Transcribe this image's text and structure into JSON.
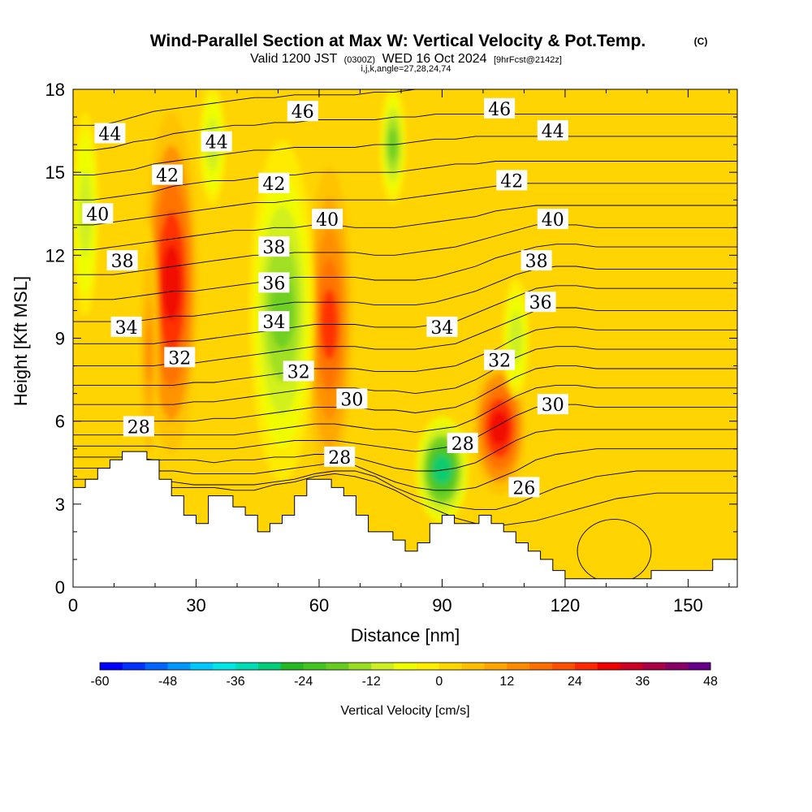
{
  "title": "Wind-Parallel Section at Max W: Vertical Velocity & Pot.Temp.",
  "copyright": "(C)",
  "subtitle": {
    "valid": "Valid 1200 JST",
    "utc": "(0300Z)",
    "date": "WED 16 Oct 2024",
    "forecast": "[9hrFcst@2142z]"
  },
  "indices": "i,j,k,angle=27,28,24,74",
  "chart_data": {
    "type": "heatmap",
    "xlabel": "Distance [nm]",
    "ylabel": "Height [Kft MSL]",
    "xlim": [
      0,
      162
    ],
    "ylim": [
      0,
      18
    ],
    "xticks": [
      0,
      30,
      60,
      90,
      120,
      150
    ],
    "yticks": [
      0,
      3,
      6,
      9,
      12,
      15,
      18
    ],
    "colorbar": {
      "label": "Vertical Velocity [cm/s]",
      "ticks": [
        -60,
        -48,
        -36,
        -24,
        -12,
        0,
        12,
        24,
        36,
        48
      ],
      "range": [
        -60,
        48
      ],
      "colors": [
        "#0000ff",
        "#0032ff",
        "#0064ff",
        "#0096ff",
        "#00c8ff",
        "#00e6e6",
        "#00dcb4",
        "#00cc7a",
        "#22b922",
        "#44c422",
        "#66cc22",
        "#99dd22",
        "#ccee22",
        "#eeff00",
        "#ffee00",
        "#ffd700",
        "#ffbf00",
        "#ffa500",
        "#ff8c00",
        "#ff6e00",
        "#ff5000",
        "#ff2800",
        "#ee0000",
        "#cc0022",
        "#aa0044",
        "#880066",
        "#660088"
      ]
    },
    "updrafts": [
      {
        "x_range": [
          20,
          28
        ],
        "z_range": [
          5,
          17
        ],
        "peak_cm_s": 30
      },
      {
        "x_range": [
          59,
          66
        ],
        "z_range": [
          4,
          15
        ],
        "peak_cm_s": 24
      },
      {
        "x_range": [
          100,
          108
        ],
        "z_range": [
          3.5,
          8
        ],
        "peak_cm_s": 30
      },
      {
        "x_range": [
          17,
          20
        ],
        "z_range": [
          4,
          13
        ],
        "peak_cm_s": 12
      }
    ],
    "downdrafts": [
      {
        "x_range": [
          86,
          94
        ],
        "z_range": [
          2.5,
          6
        ],
        "peak_cm_s": -30
      },
      {
        "x_range": [
          46,
          56
        ],
        "z_range": [
          4,
          16
        ],
        "peak_cm_s": -18
      },
      {
        "x_range": [
          76,
          80
        ],
        "z_range": [
          14,
          18
        ],
        "peak_cm_s": -18
      },
      {
        "x_range": [
          106,
          110
        ],
        "z_range": [
          7,
          11
        ],
        "peak_cm_s": -12
      },
      {
        "x_range": [
          1,
          5
        ],
        "z_range": [
          10,
          17
        ],
        "peak_cm_s": -12
      },
      {
        "x_range": [
          32,
          36
        ],
        "z_range": [
          14,
          18
        ],
        "peak_cm_s": -12
      }
    ],
    "pot_temp_contour_labels": [
      {
        "value": "44",
        "x": 9,
        "z": 16.4
      },
      {
        "value": "42",
        "x": 23,
        "z": 14.9
      },
      {
        "value": "40",
        "x": 6,
        "z": 13.5
      },
      {
        "value": "38",
        "x": 12,
        "z": 11.8
      },
      {
        "value": "34",
        "x": 13,
        "z": 9.4
      },
      {
        "value": "32",
        "x": 26,
        "z": 8.3
      },
      {
        "value": "28",
        "x": 16,
        "z": 5.8
      },
      {
        "value": "44",
        "x": 35,
        "z": 16.1
      },
      {
        "value": "46",
        "x": 56,
        "z": 17.2
      },
      {
        "value": "42",
        "x": 49,
        "z": 14.6
      },
      {
        "value": "40",
        "x": 62,
        "z": 13.3
      },
      {
        "value": "38",
        "x": 49,
        "z": 12.3
      },
      {
        "value": "36",
        "x": 49,
        "z": 11.0
      },
      {
        "value": "34",
        "x": 49,
        "z": 9.6
      },
      {
        "value": "32",
        "x": 55,
        "z": 7.8
      },
      {
        "value": "30",
        "x": 68,
        "z": 6.8
      },
      {
        "value": "28",
        "x": 65,
        "z": 4.7
      },
      {
        "value": "46",
        "x": 104,
        "z": 17.3
      },
      {
        "value": "44",
        "x": 117,
        "z": 16.5
      },
      {
        "value": "42",
        "x": 107,
        "z": 14.7
      },
      {
        "value": "40",
        "x": 117,
        "z": 13.3
      },
      {
        "value": "38",
        "x": 113,
        "z": 11.8
      },
      {
        "value": "36",
        "x": 114,
        "z": 10.3
      },
      {
        "value": "34",
        "x": 90,
        "z": 9.4
      },
      {
        "value": "32",
        "x": 104,
        "z": 8.2
      },
      {
        "value": "30",
        "x": 117,
        "z": 6.6
      },
      {
        "value": "28",
        "x": 95,
        "z": 5.2
      },
      {
        "value": "26",
        "x": 110,
        "z": 3.6
      }
    ],
    "theta_contours": [
      {
        "value": 26,
        "z": [
          3.6,
          3.6,
          3.6,
          3.6,
          3.6,
          3.6,
          3.6,
          3.6,
          3.5,
          3.5,
          3.7,
          3.8,
          4.0,
          4.1,
          4.0,
          3.8,
          3.5,
          3.1,
          2.8,
          2.5,
          2.3,
          2.2,
          2.3,
          2.4,
          2.6,
          2.8,
          3.0,
          3.2,
          3.3,
          3.4,
          3.4,
          3.4,
          3.4,
          3.4
        ]
      },
      {
        "value": 27,
        "z": [
          3.9,
          3.9,
          3.9,
          3.8,
          3.8,
          3.8,
          3.7,
          3.7,
          3.7,
          3.7,
          3.8,
          3.9,
          4.1,
          4.2,
          4.2,
          4.0,
          3.6,
          3.3,
          3.1,
          2.9,
          2.8,
          2.8,
          3.0,
          3.3,
          3.6,
          3.8,
          4.0,
          4.1,
          4.2,
          4.2,
          4.2,
          4.2,
          4.2,
          4.2
        ]
      },
      {
        "value": 28,
        "z": [
          4.3,
          4.3,
          4.3,
          4.2,
          4.2,
          4.2,
          4.1,
          4.1,
          4.1,
          4.1,
          4.2,
          4.3,
          4.4,
          4.5,
          4.4,
          4.1,
          3.8,
          3.6,
          3.5,
          3.5,
          3.6,
          3.9,
          4.2,
          4.6,
          4.8,
          4.9,
          5.0,
          5.0,
          5.0,
          5.0,
          5.0,
          5.0,
          5.0,
          5.0
        ]
      },
      {
        "value": 29,
        "z": [
          4.7,
          4.7,
          4.7,
          4.7,
          4.6,
          4.6,
          4.6,
          4.5,
          4.6,
          4.6,
          4.7,
          4.7,
          4.8,
          4.8,
          4.7,
          4.5,
          4.3,
          4.2,
          4.2,
          4.3,
          4.5,
          4.9,
          5.3,
          5.6,
          5.7,
          5.7,
          5.7,
          5.7,
          5.7,
          5.7,
          5.7,
          5.7,
          5.7,
          5.7
        ]
      },
      {
        "value": 30,
        "z": [
          5.1,
          5.1,
          5.1,
          5.1,
          5.1,
          5.0,
          5.0,
          5.0,
          5.0,
          5.1,
          5.2,
          5.3,
          5.3,
          5.3,
          5.2,
          5.1,
          5.0,
          4.9,
          5.0,
          5.1,
          5.4,
          5.8,
          6.2,
          6.5,
          6.6,
          6.6,
          6.5,
          6.5,
          6.5,
          6.5,
          6.5,
          6.5,
          6.5,
          6.5
        ]
      },
      {
        "value": 31,
        "z": [
          5.5,
          5.5,
          5.5,
          5.5,
          5.5,
          5.5,
          5.5,
          5.5,
          5.5,
          5.6,
          5.7,
          5.8,
          5.9,
          5.9,
          5.8,
          5.7,
          5.7,
          5.6,
          5.7,
          5.8,
          6.1,
          6.5,
          6.9,
          7.2,
          7.3,
          7.3,
          7.2,
          7.2,
          7.2,
          7.2,
          7.2,
          7.2,
          7.2,
          7.2
        ]
      },
      {
        "value": 32,
        "z": [
          6.0,
          6.0,
          6.0,
          6.0,
          6.0,
          6.0,
          6.0,
          6.1,
          6.1,
          6.2,
          6.3,
          6.4,
          6.5,
          6.5,
          6.5,
          6.4,
          6.4,
          6.3,
          6.4,
          6.5,
          6.8,
          7.2,
          7.6,
          7.9,
          8.0,
          8.0,
          7.9,
          7.9,
          7.9,
          7.9,
          7.9,
          7.9,
          7.9,
          7.9
        ]
      },
      {
        "value": 33,
        "z": [
          6.6,
          6.6,
          6.6,
          6.6,
          6.6,
          6.6,
          6.7,
          6.7,
          6.8,
          6.9,
          7.0,
          7.1,
          7.2,
          7.2,
          7.2,
          7.1,
          7.1,
          7.0,
          7.1,
          7.2,
          7.5,
          7.9,
          8.3,
          8.6,
          8.7,
          8.7,
          8.6,
          8.6,
          8.6,
          8.6,
          8.6,
          8.6,
          8.6,
          8.6
        ]
      },
      {
        "value": 34,
        "z": [
          7.3,
          7.3,
          7.3,
          7.3,
          7.3,
          7.3,
          7.4,
          7.4,
          7.5,
          7.6,
          7.7,
          7.8,
          7.9,
          7.9,
          7.9,
          7.8,
          7.8,
          7.8,
          7.9,
          8.0,
          8.3,
          8.6,
          9.0,
          9.3,
          9.4,
          9.4,
          9.3,
          9.3,
          9.3,
          9.3,
          9.3,
          9.3,
          9.3,
          9.3
        ]
      },
      {
        "value": 35,
        "z": [
          8.0,
          8.0,
          8.0,
          8.0,
          8.0,
          8.1,
          8.1,
          8.2,
          8.3,
          8.4,
          8.5,
          8.6,
          8.7,
          8.7,
          8.7,
          8.6,
          8.6,
          8.6,
          8.7,
          8.8,
          9.1,
          9.4,
          9.7,
          10.0,
          10.1,
          10.1,
          10.0,
          10.0,
          10.0,
          10.0,
          10.0,
          10.0,
          10.0,
          10.0
        ]
      },
      {
        "value": 36,
        "z": [
          8.8,
          8.8,
          8.8,
          8.8,
          8.8,
          8.9,
          8.9,
          9.0,
          9.1,
          9.2,
          9.3,
          9.4,
          9.5,
          9.5,
          9.5,
          9.4,
          9.4,
          9.4,
          9.5,
          9.6,
          9.9,
          10.2,
          10.5,
          10.8,
          10.9,
          10.9,
          10.8,
          10.8,
          10.8,
          10.8,
          10.8,
          10.8,
          10.8,
          10.8
        ]
      },
      {
        "value": 37,
        "z": [
          9.6,
          9.6,
          9.6,
          9.6,
          9.7,
          9.8,
          9.8,
          9.9,
          10.0,
          10.1,
          10.2,
          10.3,
          10.3,
          10.3,
          10.3,
          10.2,
          10.2,
          10.2,
          10.3,
          10.5,
          10.7,
          11.0,
          11.3,
          11.5,
          11.6,
          11.6,
          11.5,
          11.5,
          11.5,
          11.5,
          11.5,
          11.5,
          11.5,
          11.5
        ]
      },
      {
        "value": 38,
        "z": [
          10.4,
          10.4,
          10.4,
          10.5,
          10.6,
          10.7,
          10.7,
          10.8,
          10.9,
          11.0,
          11.1,
          11.2,
          11.2,
          11.2,
          11.2,
          11.1,
          11.1,
          11.1,
          11.2,
          11.4,
          11.6,
          11.9,
          12.1,
          12.3,
          12.4,
          12.4,
          12.3,
          12.3,
          12.3,
          12.3,
          12.3,
          12.3,
          12.3,
          12.3
        ]
      },
      {
        "value": 39,
        "z": [
          11.3,
          11.3,
          11.3,
          11.4,
          11.5,
          11.6,
          11.7,
          11.8,
          11.9,
          12.0,
          12.0,
          12.1,
          12.1,
          12.1,
          12.1,
          12.0,
          12.0,
          12.1,
          12.2,
          12.3,
          12.5,
          12.7,
          12.9,
          13.1,
          13.1,
          13.1,
          13.0,
          13.0,
          13.0,
          13.0,
          13.0,
          13.0,
          13.0,
          13.0
        ]
      },
      {
        "value": 40,
        "z": [
          12.2,
          12.2,
          12.3,
          12.4,
          12.5,
          12.6,
          12.7,
          12.8,
          12.9,
          12.9,
          13.0,
          13.0,
          13.1,
          13.1,
          13.0,
          13.0,
          13.0,
          13.1,
          13.2,
          13.3,
          13.4,
          13.6,
          13.7,
          13.8,
          13.8,
          13.8,
          13.8,
          13.8,
          13.8,
          13.8,
          13.8,
          13.8,
          13.8,
          13.8
        ]
      },
      {
        "value": 41,
        "z": [
          13.1,
          13.1,
          13.2,
          13.3,
          13.4,
          13.5,
          13.6,
          13.7,
          13.8,
          13.9,
          13.9,
          14.0,
          14.0,
          14.0,
          14.0,
          14.0,
          14.0,
          14.1,
          14.2,
          14.3,
          14.4,
          14.5,
          14.6,
          14.6,
          14.6,
          14.6,
          14.6,
          14.6,
          14.6,
          14.6,
          14.6,
          14.6,
          14.6,
          14.6
        ]
      },
      {
        "value": 42,
        "z": [
          14.0,
          14.0,
          14.1,
          14.2,
          14.3,
          14.5,
          14.6,
          14.7,
          14.7,
          14.8,
          14.9,
          14.9,
          15.0,
          15.0,
          15.0,
          15.0,
          15.0,
          15.1,
          15.2,
          15.3,
          15.3,
          15.4,
          15.4,
          15.4,
          15.4,
          15.4,
          15.4,
          15.4,
          15.4,
          15.4,
          15.4,
          15.4,
          15.4,
          15.4
        ]
      },
      {
        "value": 43,
        "z": [
          14.9,
          14.9,
          15.0,
          15.1,
          15.3,
          15.4,
          15.5,
          15.6,
          15.7,
          15.8,
          15.8,
          15.9,
          15.9,
          15.9,
          15.9,
          16.0,
          16.0,
          16.1,
          16.2,
          16.2,
          16.3,
          16.3,
          16.3,
          16.3,
          16.3,
          16.3,
          16.3,
          16.3,
          16.3,
          16.3,
          16.3,
          16.3,
          16.3,
          16.3
        ]
      },
      {
        "value": 44,
        "z": [
          15.8,
          15.8,
          15.9,
          16.1,
          16.2,
          16.4,
          16.5,
          16.6,
          16.7,
          16.7,
          16.8,
          16.8,
          16.9,
          16.9,
          16.9,
          16.9,
          17.0,
          17.0,
          17.1,
          17.1,
          17.1,
          17.1,
          17.1,
          17.1,
          17.1,
          17.1,
          17.1,
          17.1,
          17.1,
          17.1,
          17.1,
          17.1,
          17.1,
          17.1
        ]
      },
      {
        "value": 45,
        "z": [
          16.7,
          16.7,
          16.8,
          17.0,
          17.2,
          17.3,
          17.4,
          17.5,
          17.6,
          17.7,
          17.7,
          17.8,
          17.8,
          17.8,
          17.8,
          17.9,
          17.9,
          18.0,
          18.0,
          18.0,
          18.0,
          18.0,
          18.0,
          18.0,
          18.0,
          18.0,
          18.0,
          18.0,
          18.0,
          18.0,
          18.0,
          18.0,
          18.0,
          18.0
        ]
      }
    ],
    "terrain_x": [
      0,
      3,
      3,
      6,
      6,
      9,
      9,
      12,
      12,
      18,
      18,
      21,
      21,
      24,
      24,
      27,
      27,
      30,
      30,
      33,
      33,
      39,
      39,
      42,
      42,
      45,
      45,
      48,
      48,
      51,
      51,
      54,
      54,
      57,
      57,
      63,
      63,
      66,
      66,
      69,
      69,
      72,
      72,
      78,
      78,
      81,
      81,
      84,
      84,
      87,
      87,
      90,
      90,
      93,
      93,
      99,
      99,
      102,
      102,
      105,
      105,
      108,
      108,
      111,
      111,
      114,
      114,
      117,
      117,
      120,
      120,
      123,
      123,
      141,
      141,
      156,
      156,
      162
    ],
    "terrain_z": [
      3.6,
      3.6,
      3.9,
      3.9,
      4.3,
      4.3,
      4.6,
      4.6,
      4.9,
      4.9,
      4.6,
      4.6,
      3.9,
      3.9,
      3.3,
      3.3,
      2.6,
      2.6,
      2.3,
      2.3,
      3.3,
      3.3,
      2.9,
      2.9,
      2.6,
      2.6,
      2.0,
      2.0,
      2.3,
      2.3,
      2.6,
      2.6,
      3.3,
      3.3,
      3.9,
      3.9,
      3.6,
      3.6,
      3.3,
      3.3,
      2.6,
      2.6,
      2.0,
      2.0,
      1.7,
      1.7,
      1.3,
      1.3,
      1.6,
      1.6,
      2.3,
      2.3,
      2.6,
      2.6,
      2.3,
      2.3,
      2.6,
      2.6,
      2.3,
      2.3,
      2.0,
      2.0,
      1.6,
      1.6,
      1.3,
      1.3,
      1.0,
      1.0,
      0.6,
      0.6,
      0.3,
      0.3,
      0.3,
      0.3,
      0.6,
      0.6,
      1.0,
      1.0
    ]
  }
}
